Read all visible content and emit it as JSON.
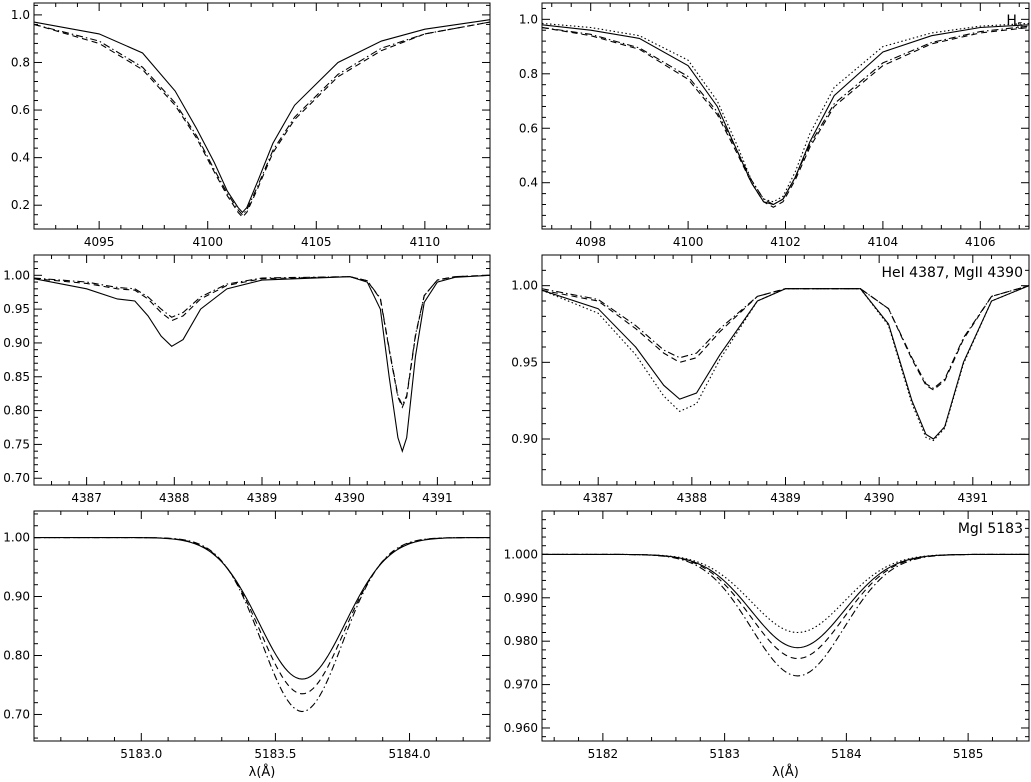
{
  "chart_data": [
    {
      "type": "line",
      "panel": "top-left",
      "title": "",
      "xlabel": "",
      "ylabel": "",
      "xlim": [
        4092.0,
        4113.0
      ],
      "ylim": [
        0.1,
        1.05
      ],
      "xticks": [
        4095,
        4100,
        4105,
        4110
      ],
      "xtick_labels": [
        "4095",
        "4100",
        "4105",
        "4110"
      ],
      "yticks": [
        0.2,
        0.4,
        0.6,
        0.8,
        1.0
      ],
      "ytick_labels": [
        "0.2",
        "0.4",
        "0.6",
        "0.8",
        "1.0"
      ],
      "series": [
        {
          "style": "solid",
          "x": [
            4092.0,
            4095.0,
            4097.0,
            4098.5,
            4099.5,
            4100.3,
            4100.9,
            4101.4,
            4101.6,
            4101.8,
            4102.3,
            4103.0,
            4104.0,
            4106.0,
            4108.0,
            4110.0,
            4113.0
          ],
          "y": [
            0.97,
            0.92,
            0.84,
            0.68,
            0.52,
            0.38,
            0.26,
            0.19,
            0.17,
            0.19,
            0.3,
            0.46,
            0.62,
            0.8,
            0.89,
            0.94,
            0.98
          ]
        },
        {
          "style": "dashed",
          "x": [
            4092.0,
            4095.0,
            4097.0,
            4098.5,
            4099.5,
            4100.3,
            4100.9,
            4101.4,
            4101.6,
            4101.8,
            4102.3,
            4103.0,
            4104.0,
            4106.0,
            4108.0,
            4110.0,
            4113.0
          ],
          "y": [
            0.96,
            0.88,
            0.77,
            0.62,
            0.48,
            0.34,
            0.24,
            0.17,
            0.15,
            0.17,
            0.27,
            0.42,
            0.56,
            0.74,
            0.85,
            0.92,
            0.97
          ]
        },
        {
          "style": "dashdot",
          "x": [
            4092.0,
            4095.0,
            4097.0,
            4098.5,
            4099.5,
            4100.3,
            4100.9,
            4101.4,
            4101.6,
            4101.8,
            4102.3,
            4103.0,
            4104.0,
            4106.0,
            4108.0,
            4110.0,
            4113.0
          ],
          "y": [
            0.96,
            0.89,
            0.78,
            0.63,
            0.49,
            0.35,
            0.25,
            0.18,
            0.16,
            0.18,
            0.28,
            0.43,
            0.57,
            0.75,
            0.86,
            0.92,
            0.97
          ]
        }
      ]
    },
    {
      "type": "line",
      "panel": "top-right",
      "title": "H_δ",
      "xlabel": "",
      "ylabel": "",
      "xlim": [
        4097.0,
        4107.0
      ],
      "ylim": [
        0.23,
        1.06
      ],
      "xticks": [
        4098,
        4100,
        4102,
        4104,
        4106
      ],
      "xtick_labels": [
        "4098",
        "4100",
        "4102",
        "4104",
        "4106"
      ],
      "yticks": [
        0.4,
        0.6,
        0.8,
        1.0
      ],
      "ytick_labels": [
        "0.4",
        "0.6",
        "0.8",
        "1.0"
      ],
      "series": [
        {
          "style": "solid",
          "x": [
            4097.0,
            4098.0,
            4099.0,
            4100.0,
            4100.6,
            4101.0,
            4101.3,
            4101.55,
            4101.75,
            4101.95,
            4102.2,
            4102.5,
            4103.0,
            4104.0,
            4105.0,
            4106.0,
            4107.0
          ],
          "y": [
            0.98,
            0.96,
            0.93,
            0.83,
            0.68,
            0.52,
            0.4,
            0.33,
            0.32,
            0.34,
            0.42,
            0.55,
            0.72,
            0.88,
            0.94,
            0.97,
            0.98
          ]
        },
        {
          "style": "dotted",
          "x": [
            4097.0,
            4098.0,
            4099.0,
            4100.0,
            4100.6,
            4101.0,
            4101.3,
            4101.55,
            4101.75,
            4101.95,
            4102.2,
            4102.5,
            4103.0,
            4104.0,
            4105.0,
            4106.0,
            4107.0
          ],
          "y": [
            0.985,
            0.97,
            0.94,
            0.85,
            0.7,
            0.54,
            0.41,
            0.34,
            0.33,
            0.35,
            0.44,
            0.58,
            0.75,
            0.9,
            0.95,
            0.975,
            0.985
          ]
        },
        {
          "style": "dashed",
          "x": [
            4097.0,
            4098.0,
            4099.0,
            4100.0,
            4100.6,
            4101.0,
            4101.3,
            4101.55,
            4101.75,
            4101.95,
            4102.2,
            4102.5,
            4103.0,
            4104.0,
            4105.0,
            4106.0,
            4107.0
          ],
          "y": [
            0.97,
            0.94,
            0.89,
            0.78,
            0.65,
            0.51,
            0.4,
            0.33,
            0.31,
            0.33,
            0.41,
            0.53,
            0.68,
            0.83,
            0.91,
            0.95,
            0.97
          ]
        },
        {
          "style": "dashdot",
          "x": [
            4097.0,
            4098.0,
            4099.0,
            4100.0,
            4100.6,
            4101.0,
            4101.3,
            4101.55,
            4101.75,
            4101.95,
            4102.2,
            4102.5,
            4103.0,
            4104.0,
            4105.0,
            4106.0,
            4107.0
          ],
          "y": [
            0.97,
            0.945,
            0.895,
            0.79,
            0.66,
            0.52,
            0.41,
            0.34,
            0.32,
            0.34,
            0.42,
            0.54,
            0.69,
            0.84,
            0.915,
            0.955,
            0.975
          ]
        }
      ]
    },
    {
      "type": "line",
      "panel": "middle-left",
      "title": "",
      "xlabel": "",
      "ylabel": "",
      "xlim": [
        4386.4,
        4391.6
      ],
      "ylim": [
        0.69,
        1.03
      ],
      "xticks": [
        4387,
        4388,
        4389,
        4390,
        4391
      ],
      "xtick_labels": [
        "4387",
        "4388",
        "4389",
        "4390",
        "4391"
      ],
      "yticks": [
        0.7,
        0.75,
        0.8,
        0.85,
        0.9,
        0.95,
        1.0
      ],
      "ytick_labels": [
        "0.70",
        "0.75",
        "0.80",
        "0.85",
        "0.90",
        "0.95",
        "1.00"
      ],
      "series": [
        {
          "style": "solid",
          "x": [
            4386.4,
            4387.0,
            4387.35,
            4387.55,
            4387.7,
            4387.85,
            4387.97,
            4388.1,
            4388.3,
            4388.6,
            4389.0,
            4390.0,
            4390.2,
            4390.35,
            4390.45,
            4390.55,
            4390.6,
            4390.65,
            4390.75,
            4390.85,
            4391.0,
            4391.2,
            4391.6
          ],
          "y": [
            0.995,
            0.98,
            0.965,
            0.962,
            0.94,
            0.91,
            0.895,
            0.905,
            0.95,
            0.98,
            0.993,
            0.998,
            0.99,
            0.95,
            0.85,
            0.76,
            0.74,
            0.76,
            0.88,
            0.96,
            0.99,
            0.997,
            1.0
          ]
        },
        {
          "style": "dashed",
          "x": [
            4386.4,
            4387.0,
            4387.35,
            4387.55,
            4387.7,
            4387.85,
            4387.97,
            4388.1,
            4388.3,
            4388.6,
            4389.0,
            4390.0,
            4390.2,
            4390.35,
            4390.45,
            4390.55,
            4390.6,
            4390.65,
            4390.75,
            4390.85,
            4391.0,
            4391.2,
            4391.6
          ],
          "y": [
            0.995,
            0.988,
            0.98,
            0.978,
            0.965,
            0.945,
            0.933,
            0.94,
            0.965,
            0.985,
            0.995,
            0.998,
            0.992,
            0.965,
            0.89,
            0.82,
            0.805,
            0.82,
            0.91,
            0.97,
            0.993,
            0.998,
            1.0
          ]
        },
        {
          "style": "dashdot",
          "x": [
            4386.4,
            4387.0,
            4387.35,
            4387.55,
            4387.7,
            4387.85,
            4387.97,
            4388.1,
            4388.3,
            4388.6,
            4389.0,
            4390.0,
            4390.2,
            4390.35,
            4390.45,
            4390.55,
            4390.6,
            4390.65,
            4390.75,
            4390.85,
            4391.0,
            4391.2,
            4391.6
          ],
          "y": [
            0.996,
            0.99,
            0.982,
            0.98,
            0.968,
            0.95,
            0.938,
            0.945,
            0.968,
            0.987,
            0.996,
            0.998,
            0.992,
            0.966,
            0.892,
            0.822,
            0.808,
            0.822,
            0.912,
            0.97,
            0.993,
            0.998,
            1.0
          ]
        }
      ]
    },
    {
      "type": "line",
      "panel": "middle-right",
      "title": "HeI 4387, MgII 4390",
      "xlabel": "",
      "ylabel": "",
      "xlim": [
        4386.4,
        4391.6
      ],
      "ylim": [
        0.87,
        1.02
      ],
      "xticks": [
        4387,
        4388,
        4389,
        4390,
        4391
      ],
      "xtick_labels": [
        "4387",
        "4388",
        "4389",
        "4390",
        "4391"
      ],
      "yticks": [
        0.9,
        0.95,
        1.0
      ],
      "ytick_labels": [
        "0.90",
        "0.95",
        "1.00"
      ],
      "series": [
        {
          "style": "solid",
          "x": [
            4386.4,
            4387.0,
            4387.4,
            4387.7,
            4387.87,
            4388.05,
            4388.3,
            4388.7,
            4389.0,
            4389.8,
            4390.1,
            4390.35,
            4390.5,
            4390.58,
            4390.7,
            4390.9,
            4391.2,
            4391.6
          ],
          "y": [
            0.997,
            0.985,
            0.96,
            0.935,
            0.926,
            0.93,
            0.955,
            0.99,
            0.998,
            0.998,
            0.975,
            0.925,
            0.903,
            0.9,
            0.908,
            0.95,
            0.99,
            1.0
          ]
        },
        {
          "style": "dotted",
          "x": [
            4386.4,
            4387.0,
            4387.4,
            4387.7,
            4387.87,
            4388.05,
            4388.3,
            4388.7,
            4389.0,
            4389.8,
            4390.1,
            4390.35,
            4390.5,
            4390.58,
            4390.7,
            4390.9,
            4391.2,
            4391.6
          ],
          "y": [
            0.997,
            0.982,
            0.955,
            0.928,
            0.918,
            0.923,
            0.952,
            0.99,
            0.998,
            0.998,
            0.974,
            0.923,
            0.901,
            0.899,
            0.907,
            0.949,
            0.99,
            1.0
          ]
        },
        {
          "style": "dashed",
          "x": [
            4386.4,
            4387.0,
            4387.4,
            4387.7,
            4387.87,
            4388.05,
            4388.3,
            4388.7,
            4389.0,
            4389.8,
            4390.1,
            4390.35,
            4390.5,
            4390.58,
            4390.7,
            4390.9,
            4391.2,
            4391.6
          ],
          "y": [
            0.997,
            0.99,
            0.972,
            0.956,
            0.95,
            0.953,
            0.97,
            0.993,
            0.998,
            0.998,
            0.985,
            0.952,
            0.935,
            0.932,
            0.938,
            0.965,
            0.993,
            1.0
          ]
        },
        {
          "style": "dashdot",
          "x": [
            4386.4,
            4387.0,
            4387.4,
            4387.7,
            4387.87,
            4388.05,
            4388.3,
            4388.7,
            4389.0,
            4389.8,
            4390.1,
            4390.35,
            4390.5,
            4390.58,
            4390.7,
            4390.9,
            4391.2,
            4391.6
          ],
          "y": [
            0.998,
            0.991,
            0.974,
            0.958,
            0.953,
            0.956,
            0.972,
            0.993,
            0.998,
            0.998,
            0.985,
            0.953,
            0.936,
            0.933,
            0.939,
            0.966,
            0.993,
            1.0
          ]
        }
      ]
    },
    {
      "type": "line",
      "panel": "bottom-left",
      "title": "",
      "xlabel": "λ(Å)",
      "ylabel": "",
      "xlim": [
        5182.6,
        5184.3
      ],
      "ylim": [
        0.655,
        1.045
      ],
      "xticks": [
        5183.0,
        5183.5,
        5184.0
      ],
      "xtick_labels": [
        "5183.0",
        "5183.5",
        "5184.0"
      ],
      "yticks": [
        0.7,
        0.8,
        0.9,
        1.0
      ],
      "ytick_labels": [
        "0.70",
        "0.80",
        "0.90",
        "1.00"
      ],
      "series": [
        {
          "style": "solid",
          "line_center": 5183.6,
          "depth": 0.24,
          "sigma": 0.16
        },
        {
          "style": "dashed",
          "line_center": 5183.6,
          "depth": 0.265,
          "sigma": 0.155
        },
        {
          "style": "dashdot",
          "line_center": 5183.6,
          "depth": 0.295,
          "sigma": 0.15
        }
      ]
    },
    {
      "type": "line",
      "panel": "bottom-right",
      "title": "MgI 5183",
      "xlabel": "λ(Å)",
      "ylabel": "",
      "xlim": [
        5181.5,
        5185.5
      ],
      "ylim": [
        0.957,
        1.01
      ],
      "xticks": [
        5182,
        5183,
        5184,
        5185
      ],
      "xtick_labels": [
        "5182",
        "5183",
        "5184",
        "5185"
      ],
      "yticks": [
        0.96,
        0.97,
        0.98,
        0.99,
        1.0
      ],
      "ytick_labels": [
        "0.960",
        "0.970",
        "0.980",
        "0.990",
        "1.000"
      ],
      "series": [
        {
          "style": "solid",
          "line_center": 5183.6,
          "depth": 0.0215,
          "sigma": 0.38
        },
        {
          "style": "dotted",
          "line_center": 5183.6,
          "depth": 0.018,
          "sigma": 0.38
        },
        {
          "style": "dashed",
          "line_center": 5183.6,
          "depth": 0.024,
          "sigma": 0.38
        },
        {
          "style": "dashdot",
          "line_center": 5183.6,
          "depth": 0.028,
          "sigma": 0.38
        }
      ]
    }
  ]
}
